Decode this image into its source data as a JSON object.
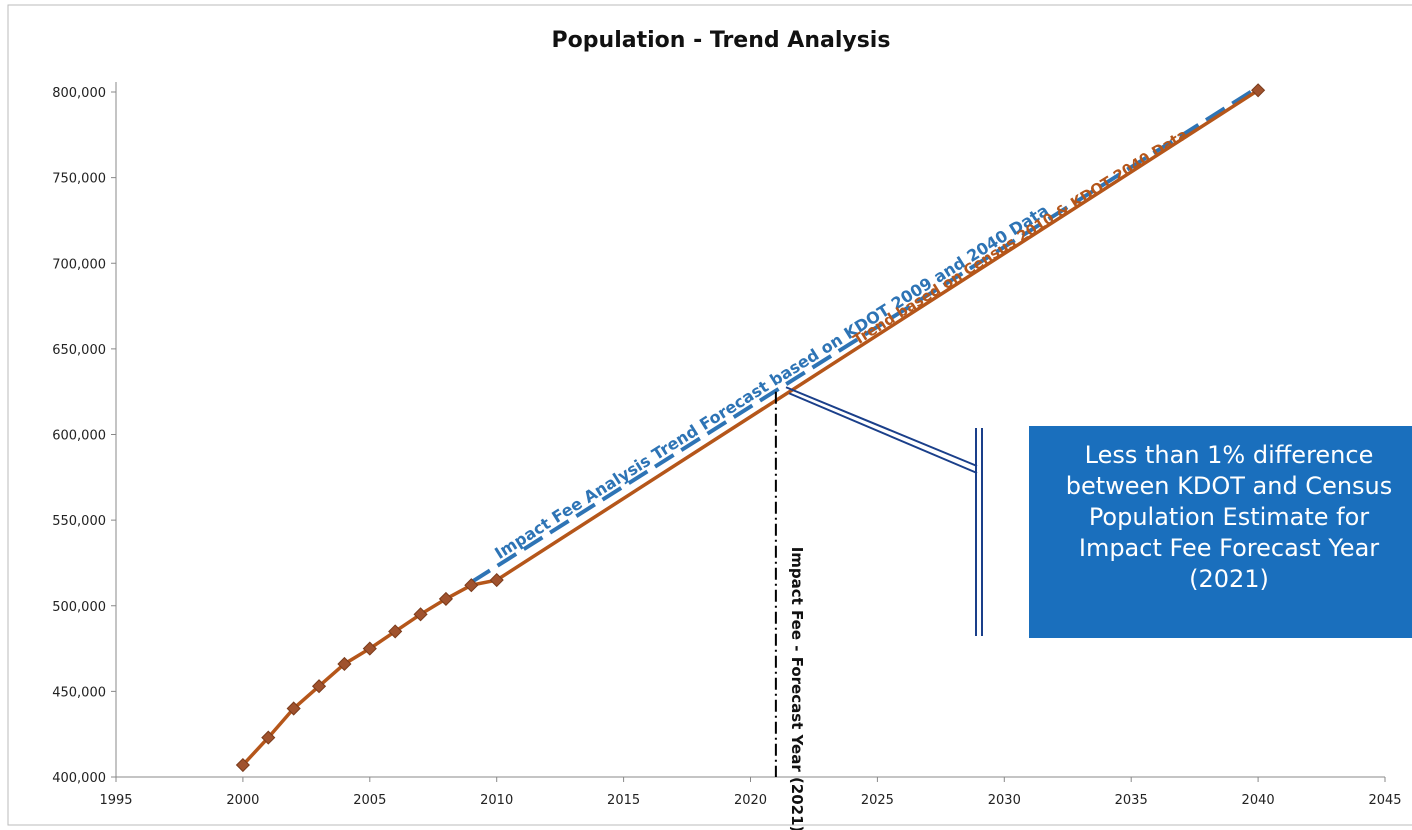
{
  "chart_data": {
    "type": "line",
    "title": "Population - Trend Analysis",
    "xlabel": "",
    "ylabel": "",
    "xlim": [
      1995,
      2045
    ],
    "ylim": [
      400000,
      800000
    ],
    "x_ticks": [
      "1995",
      "2000",
      "2005",
      "2010",
      "2015",
      "2020",
      "2025",
      "2030",
      "2035",
      "2040",
      "2045"
    ],
    "y_ticks": [
      "400,000",
      "450,000",
      "500,000",
      "550,000",
      "600,000",
      "650,000",
      "700,000",
      "750,000",
      "800,000"
    ],
    "grid": false,
    "legend": "none",
    "series": [
      {
        "x": [
          2000,
          2001,
          2002,
          2003,
          2004,
          2005,
          2006,
          2007,
          2008,
          2009,
          2010,
          2040
        ],
        "values": [
          407000,
          423000,
          440000,
          453000,
          466000,
          475000,
          485000,
          495000,
          504000,
          512000,
          515000,
          801000
        ],
        "color": "#b5561a",
        "style": "solid-with-markers"
      },
      {
        "x": [
          2009,
          2040
        ],
        "values": [
          512000,
          801000
        ],
        "color": "#2e74b5",
        "style": "dashed"
      }
    ],
    "annotations": {
      "blue_label": "Impact Fee Analysis Trend Forecast based on KDOT 2009 and 2040 Data",
      "brown_label": "Trend based on Census 2010 & KDOT 2040 Data",
      "vertical_line_year": 2021,
      "vertical_label": "Impact Fee - Forecast Year (2021)"
    }
  },
  "callout": {
    "lines": [
      "Less than 1% difference",
      "between KDOT and Census",
      "Population Estimate for",
      "Impact Fee Forecast Year",
      "(2021)"
    ],
    "color": "#1a6fbd"
  },
  "colors": {
    "brown": "#b5561a",
    "blue": "#2e74b5",
    "callout_line": "#1a3f8a"
  }
}
